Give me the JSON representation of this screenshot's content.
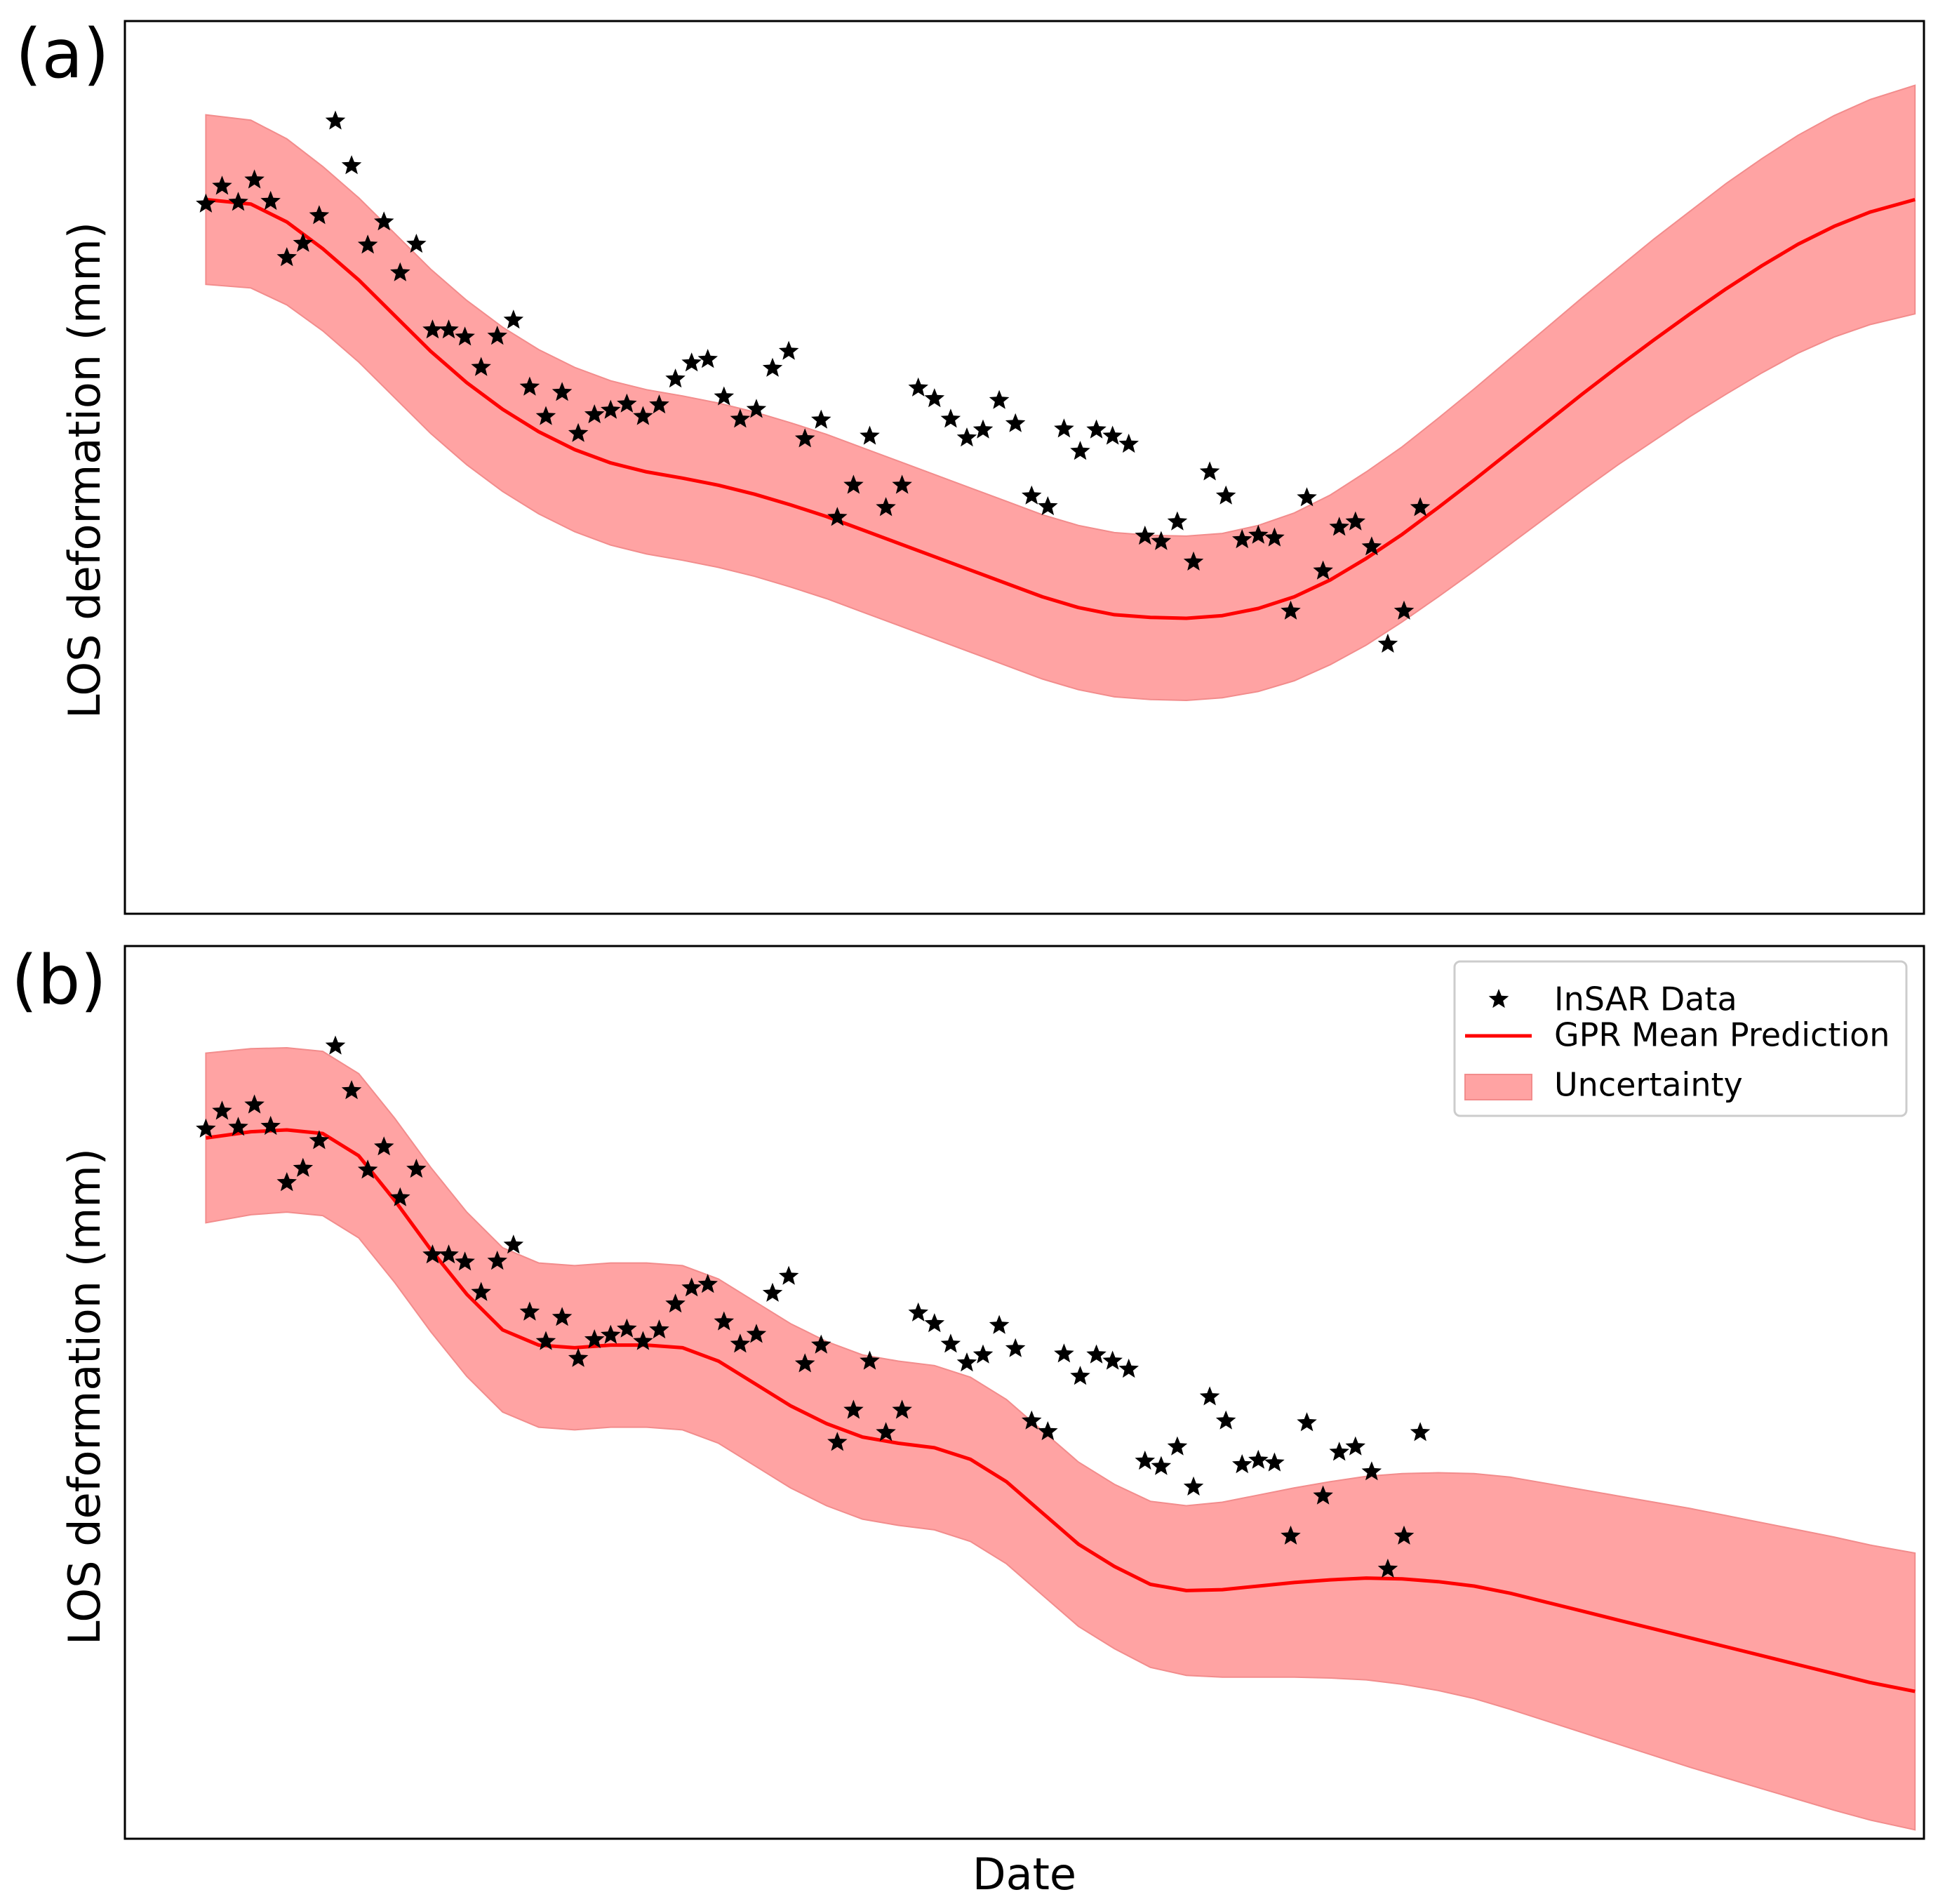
{
  "figure": {
    "xlabel": "Date",
    "legend": {
      "position": "top-right",
      "entries": [
        {
          "key": "data",
          "label": "InSAR Data"
        },
        {
          "key": "mean",
          "label": "GPR Mean Prediction"
        },
        {
          "key": "band",
          "label": "Uncertainty"
        }
      ]
    },
    "colors": {
      "line": "#ff0000",
      "band": "#ffa3a3",
      "band_edge": "#f28c8c",
      "marker": "#000000",
      "axes": "#000000"
    }
  },
  "chart_data": [
    {
      "type": "line",
      "panel_label": "(a)",
      "ylabel": "LOS deformation (mm)",
      "xlabel": "",
      "grid": false,
      "xlim": [
        0,
        100
      ],
      "ylim": [
        0,
        100
      ],
      "insar_data": {
        "x": [
          4.5,
          5.4,
          6.3,
          7.2,
          8.1,
          9.0,
          9.9,
          10.8,
          11.7,
          12.6,
          13.5,
          14.4,
          15.3,
          16.2,
          17.1,
          18.0,
          18.9,
          19.8,
          20.7,
          21.6,
          22.5,
          23.4,
          24.3,
          25.2,
          26.1,
          27.0,
          27.9,
          28.8,
          29.7,
          30.6,
          31.5,
          32.4,
          33.3,
          34.2,
          35.1,
          36.0,
          36.9,
          37.8,
          38.7,
          39.6,
          40.5,
          41.4,
          42.3,
          43.2,
          44.1,
          45.0,
          45.9,
          46.8,
          47.7,
          48.6,
          49.5,
          50.4,
          51.3,
          52.2,
          53.1,
          54.0,
          54.9,
          55.8,
          56.7,
          57.6,
          58.5,
          59.4,
          60.3,
          61.2,
          62.1,
          63.0,
          63.9,
          64.8,
          65.7,
          66.6,
          67.5,
          68.4,
          69.3,
          70.2,
          71.1,
          72.0
        ],
        "y": [
          79.5,
          81.5,
          79.7,
          82.2,
          79.8,
          73.5,
          75.1,
          78.2,
          88.8,
          83.8,
          74.9,
          77.5,
          71.8,
          75.0,
          65.4,
          65.4,
          64.6,
          61.2,
          64.7,
          66.5,
          59.0,
          55.7,
          58.4,
          53.8,
          55.9,
          56.4,
          57.1,
          55.7,
          57.0,
          59.9,
          61.7,
          62.1,
          57.9,
          55.4,
          56.5,
          61.1,
          63.0,
          53.2,
          55.3,
          44.4,
          48.0,
          53.5,
          45.5,
          48.0,
          58.9,
          57.7,
          55.4,
          53.3,
          54.2,
          57.5,
          54.9,
          46.8,
          45.6,
          54.3,
          51.8,
          54.2,
          53.5,
          52.6,
          42.3,
          41.7,
          43.9,
          39.4,
          49.5,
          46.8,
          41.9,
          42.4,
          42.1,
          33.9,
          46.6,
          38.4,
          43.3,
          43.9,
          41.1,
          30.2,
          33.9,
          45.5
        ]
      },
      "gpr_mean": {
        "x": [
          4.5,
          7,
          9,
          11,
          13,
          15,
          17,
          19,
          21,
          23,
          25,
          27,
          29,
          31,
          33,
          35,
          37,
          39,
          41,
          43,
          45,
          47,
          49,
          51,
          53,
          55,
          57,
          59,
          61,
          63,
          65,
          67,
          69,
          71,
          73,
          75,
          77,
          79,
          81,
          83,
          85,
          87,
          89,
          91,
          93,
          95,
          97,
          99.5
        ],
        "y": [
          80.0,
          79.5,
          77.5,
          74.5,
          71.0,
          67.0,
          63.0,
          59.5,
          56.5,
          54.0,
          52.0,
          50.5,
          49.5,
          48.8,
          48.0,
          47.0,
          45.8,
          44.5,
          43.0,
          41.5,
          40.0,
          38.5,
          37.0,
          35.5,
          34.3,
          33.5,
          33.2,
          33.1,
          33.4,
          34.2,
          35.5,
          37.4,
          39.8,
          42.5,
          45.5,
          48.6,
          51.8,
          55.0,
          58.2,
          61.3,
          64.3,
          67.2,
          70.0,
          72.6,
          75.0,
          77.0,
          78.6,
          80.0
        ]
      },
      "uncertainty_half_width": {
        "x": [
          4.5,
          7,
          9,
          11,
          13,
          15,
          17,
          19,
          21,
          23,
          25,
          27,
          29,
          31,
          33,
          35,
          37,
          39,
          41,
          43,
          45,
          47,
          49,
          51,
          53,
          55,
          57,
          59,
          61,
          63,
          65,
          67,
          69,
          71,
          73,
          75,
          77,
          79,
          81,
          83,
          85,
          87,
          89,
          91,
          93,
          95,
          97,
          99.5
        ],
        "w": [
          9.5,
          9.4,
          9.3,
          9.2,
          9.2,
          9.2,
          9.2,
          9.2,
          9.2,
          9.2,
          9.2,
          9.2,
          9.2,
          9.2,
          9.2,
          9.2,
          9.2,
          9.2,
          9.2,
          9.2,
          9.2,
          9.2,
          9.2,
          9.2,
          9.2,
          9.2,
          9.2,
          9.2,
          9.2,
          9.3,
          9.4,
          9.5,
          9.7,
          9.8,
          10.0,
          10.2,
          10.4,
          10.6,
          10.8,
          11.0,
          11.3,
          11.5,
          11.8,
          12.0,
          12.2,
          12.4,
          12.6,
          12.8
        ]
      }
    },
    {
      "type": "line",
      "panel_label": "(b)",
      "ylabel": "LOS deformation (mm)",
      "xlabel": "Date",
      "grid": false,
      "xlim": [
        0,
        100
      ],
      "ylim": [
        0,
        100
      ],
      "insar_data": {
        "x": [
          4.5,
          5.4,
          6.3,
          7.2,
          8.1,
          9.0,
          9.9,
          10.8,
          11.7,
          12.6,
          13.5,
          14.4,
          15.3,
          16.2,
          17.1,
          18.0,
          18.9,
          19.8,
          20.7,
          21.6,
          22.5,
          23.4,
          24.3,
          25.2,
          26.1,
          27.0,
          27.9,
          28.8,
          29.7,
          30.6,
          31.5,
          32.4,
          33.3,
          34.2,
          35.1,
          36.0,
          36.9,
          37.8,
          38.7,
          39.6,
          40.5,
          41.4,
          42.3,
          43.2,
          44.1,
          45.0,
          45.9,
          46.8,
          47.7,
          48.6,
          49.5,
          50.4,
          51.3,
          52.2,
          53.1,
          54.0,
          54.9,
          55.8,
          56.7,
          57.6,
          58.5,
          59.4,
          60.3,
          61.2,
          62.1,
          63.0,
          63.9,
          64.8,
          65.7,
          66.6,
          67.5,
          68.4,
          69.3,
          70.2,
          71.1,
          72.0
        ],
        "y": [
          79.5,
          81.5,
          79.7,
          82.2,
          79.8,
          73.5,
          75.1,
          78.2,
          88.8,
          83.8,
          74.9,
          77.5,
          71.8,
          75.0,
          65.4,
          65.4,
          64.6,
          61.2,
          64.7,
          66.5,
          59.0,
          55.7,
          58.4,
          53.8,
          55.9,
          56.4,
          57.1,
          55.7,
          57.0,
          59.9,
          61.7,
          62.1,
          57.9,
          55.4,
          56.5,
          61.1,
          63.0,
          53.2,
          55.3,
          44.4,
          48.0,
          53.5,
          45.5,
          48.0,
          58.9,
          57.7,
          55.4,
          53.3,
          54.2,
          57.5,
          54.9,
          46.8,
          45.6,
          54.3,
          51.8,
          54.2,
          53.5,
          52.6,
          42.3,
          41.7,
          43.9,
          39.4,
          49.5,
          46.8,
          41.9,
          42.4,
          42.1,
          33.9,
          46.6,
          38.4,
          43.3,
          43.9,
          41.1,
          30.2,
          33.9,
          45.5
        ]
      },
      "gpr_mean": {
        "x": [
          4.5,
          7,
          9,
          11,
          13,
          15,
          17,
          19,
          21,
          23,
          25,
          27,
          29,
          31,
          33,
          35,
          37,
          39,
          41,
          43,
          45,
          47,
          49,
          51,
          53,
          55,
          57,
          59,
          61,
          63,
          65,
          67,
          69,
          71,
          73,
          75,
          77,
          79,
          81,
          83,
          85,
          87,
          89,
          91,
          93,
          95,
          97,
          99.5
        ],
        "y": [
          78.5,
          79.2,
          79.4,
          79.0,
          76.5,
          71.5,
          66.0,
          61.0,
          57.0,
          55.3,
          55.0,
          55.3,
          55.3,
          55.0,
          53.5,
          51.0,
          48.5,
          46.5,
          45.0,
          44.3,
          43.8,
          42.5,
          40.0,
          36.5,
          33.0,
          30.5,
          28.5,
          27.8,
          27.9,
          28.3,
          28.7,
          29.0,
          29.2,
          29.1,
          28.8,
          28.3,
          27.5,
          26.5,
          25.5,
          24.5,
          23.5,
          22.5,
          21.5,
          20.5,
          19.5,
          18.5,
          17.5,
          16.5
        ]
      },
      "uncertainty_half_width": {
        "x": [
          4.5,
          7,
          9,
          11,
          13,
          15,
          17,
          19,
          21,
          23,
          25,
          27,
          29,
          31,
          33,
          35,
          37,
          39,
          41,
          43,
          45,
          47,
          49,
          51,
          53,
          55,
          57,
          59,
          61,
          63,
          65,
          67,
          69,
          71,
          73,
          75,
          77,
          79,
          81,
          83,
          85,
          87,
          89,
          91,
          93,
          95,
          97,
          99.5
        ],
        "w": [
          9.5,
          9.3,
          9.2,
          9.2,
          9.2,
          9.2,
          9.2,
          9.2,
          9.2,
          9.2,
          9.2,
          9.2,
          9.2,
          9.2,
          9.2,
          9.2,
          9.2,
          9.2,
          9.2,
          9.2,
          9.2,
          9.2,
          9.2,
          9.2,
          9.2,
          9.2,
          9.3,
          9.5,
          9.8,
          10.2,
          10.6,
          11.0,
          11.4,
          11.8,
          12.2,
          12.6,
          13.0,
          13.3,
          13.6,
          13.9,
          14.2,
          14.5,
          14.7,
          14.9,
          15.1,
          15.3,
          15.4,
          15.5
        ]
      }
    }
  ]
}
